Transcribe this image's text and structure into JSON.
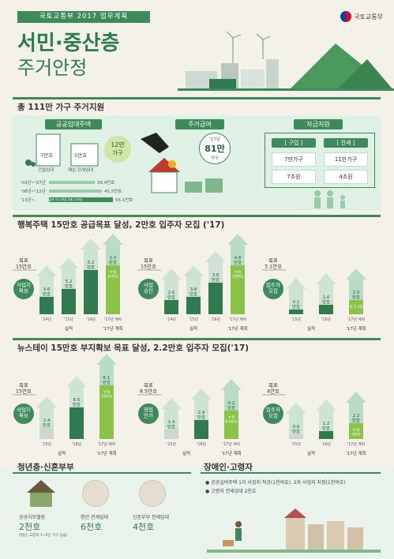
{
  "header": {
    "tag": "국토교통부 2017 업무계획",
    "title_main": "서민·중산층",
    "title_sub": "주거안정",
    "ministry": "국토교통부"
  },
  "section1": {
    "heading": "총 111만 가구 주거지원",
    "public_rental": {
      "label": "공공임대주택",
      "build_label": "건설임대",
      "build_value": "7만호",
      "lease_label": "매입·전세임대",
      "lease_value": "5만호",
      "circle_value": "12만",
      "circle_unit": "가구",
      "progress": [
        {
          "period": "'03년~'07년",
          "value": "39.4만호"
        },
        {
          "period": "'08년~'12년",
          "value": "45.5만호"
        },
        {
          "period": "'13년~",
          "value": "55.1만호",
          "note": "실적 43.1만호  계획 12만호"
        }
      ]
    },
    "housing_benefit": {
      "label": "주거급여",
      "year": "'17년",
      "value": "81만",
      "unit": "가구"
    },
    "funding": {
      "label": "자금지원",
      "buy_label": "[ 구입 ]",
      "jeonse_label": "[ 전세 ]",
      "buy_households": "7만가구",
      "jeonse_households": "11만가구",
      "buy_amount": "7조원",
      "jeonse_amount": "4조원"
    }
  },
  "section2": {
    "heading": "행복주택 15만호 공급목표 달성, 2만호 입주자 모집 ('17)",
    "groups": [
      {
        "badge": "사업지\n확보",
        "goal": "목표\n15만호",
        "bars": [
          "3.6\n만호",
          "5.2\n만호",
          "5.2\n만호",
          "1.0\n만호"
        ],
        "years": [
          "'14년",
          "'15년",
          "'16년",
          "'17년 계획"
        ],
        "actual": "실적",
        "plan": "'17년 계획",
        "cum": "누적\n15만호"
      },
      {
        "badge": "사업\n승인",
        "goal": "목표\n15만호",
        "bars": [
          "2.6\n만호",
          "3.8\n만호",
          "3.8\n만호",
          "4.8\n만호"
        ],
        "years": [
          "'14년",
          "'15년",
          "'16년",
          "'17년 계획"
        ],
        "actual": "실적",
        "plan": "'17년 계획",
        "cum": "누적\n15만호"
      },
      {
        "badge": "입주자\n모집",
        "goal": "목표\n3.1만호",
        "bars": [
          "0.1\n만호",
          "1.0\n만호",
          "2.0\n만호"
        ],
        "years": [
          "'15년",
          "'16년",
          "'17년 계획"
        ],
        "actual": "실적",
        "plan": "'17년 계획",
        "cum": "누적 1.1만호"
      }
    ]
  },
  "section3": {
    "heading": "뉴스테이 15만호 부지확보 목표 달성, 2.2만호 입주자 모집('17)",
    "groups": [
      {
        "badge": "사업지\n확보",
        "goal": "목표\n15만호",
        "bars": [
          "2.4\n만호",
          "6.5\n만호",
          "6.1\n만호"
        ],
        "years": [
          "'15년",
          "'16년",
          "'17년 계획"
        ],
        "actual": "실적",
        "plan": "'17년 계획",
        "cum": "누적\n15만호"
      },
      {
        "badge": "영업\n인가",
        "goal": "목표\n8.5만호",
        "bars": [
          "1.4\n만호",
          "2.9\n만호",
          "4.2\n만호"
        ],
        "years": [
          "'15년",
          "'16년",
          "'17년 계획"
        ],
        "actual": "실적",
        "plan": "'17년 계획",
        "cum": "누적\n8.5만호"
      },
      {
        "badge": "입주자\n모집",
        "goal": "목표\n4만호",
        "bars": [
          "0.6\n만호",
          "1.2\n만호",
          "2.2\n만호"
        ],
        "years": [
          "'15년",
          "'16년",
          "'17년 계획"
        ],
        "actual": "실적",
        "plan": "'17년 계획",
        "cum": "누적\n4만호"
      }
    ]
  },
  "section4": {
    "heading": "청년층·신혼부부",
    "items": [
      {
        "title": "공공리모델링",
        "value": "2천호",
        "note": "(청년, 고령자 1~2인 가구 공급)"
      },
      {
        "title": "청년 전세임대",
        "value": "6천호"
      },
      {
        "title": "신혼부부 전세임대",
        "value": "4천호"
      }
    ]
  },
  "section5": {
    "heading": "장애인·고령자",
    "bullets": [
      "공공실버주택 1차 사업지 착공(1천여호), 2차 사업지 지정(1천여호)",
      "고령자 전세임대 2천호"
    ]
  },
  "colors": {
    "primary": "#3f8a5d",
    "dark": "#1e5a34",
    "light": "#b9ddc4",
    "background": "#f4f1e8"
  }
}
